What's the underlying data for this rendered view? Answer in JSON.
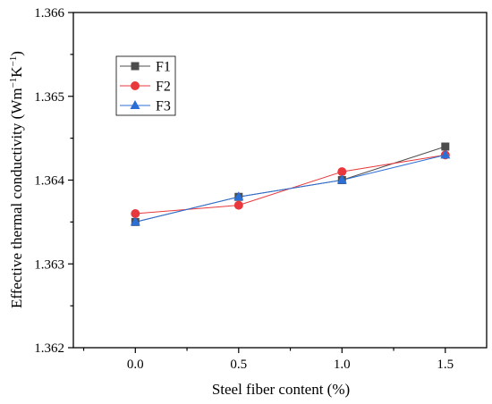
{
  "chart_data": {
    "type": "line",
    "xlabel": "Steel fiber content (%)",
    "ylabel": "Effective thermal conductivity (Wm",
    "ylabel_unit_mid": "K",
    "ylabel_sup1": "−1",
    "ylabel_sup2": "−1",
    "ylabel_close": ")",
    "xlim": [
      -0.3,
      1.7
    ],
    "ylim": [
      1.362,
      1.366
    ],
    "x_ticks": [
      0.0,
      0.5,
      1.0,
      1.5
    ],
    "x_tick_labels": [
      "0.0",
      "0.5",
      "1.0",
      "1.5"
    ],
    "y_ticks": [
      1.362,
      1.363,
      1.364,
      1.365,
      1.366
    ],
    "y_tick_labels": [
      "1.362",
      "1.363",
      "1.364",
      "1.365",
      "1.366"
    ],
    "x": [
      0.0,
      0.5,
      1.0,
      1.5
    ],
    "series": [
      {
        "name": "F1",
        "values": [
          1.3635,
          1.3638,
          1.364,
          1.3644
        ],
        "color": "#4d4d4d",
        "marker": "square"
      },
      {
        "name": "F2",
        "values": [
          1.3636,
          1.3637,
          1.3641,
          1.3643
        ],
        "color": "#e8383b",
        "marker": "circle"
      },
      {
        "name": "F3",
        "values": [
          1.3635,
          1.3638,
          1.364,
          1.3643
        ],
        "color": "#2b6fd6",
        "marker": "triangle"
      }
    ],
    "legend_position": "top-left",
    "grid": false
  }
}
